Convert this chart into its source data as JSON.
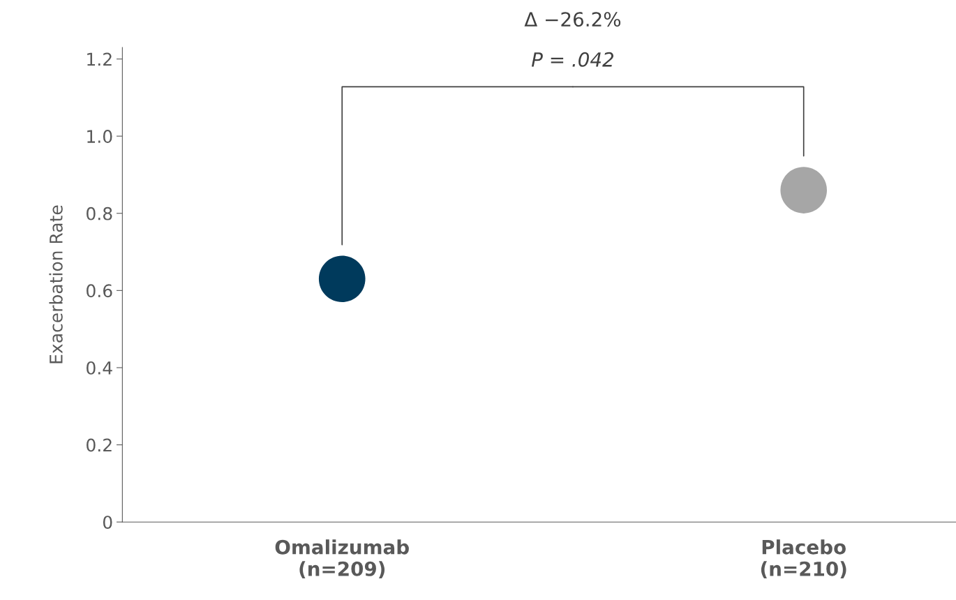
{
  "chart_data": {
    "type": "scatter",
    "ylabel": "Exacerbation Rate",
    "categories": [
      "Omalizumab\n(n=209)",
      "Placebo\n(n=210)"
    ],
    "values": [
      0.63,
      0.86
    ],
    "colors": [
      "#003a5c",
      "#a6a6a6"
    ],
    "ylim": [
      0,
      1.23
    ],
    "yticks": [
      0,
      0.2,
      0.4,
      0.6,
      0.8,
      {
        "value": 1,
        "label": "1.0"
      },
      1.2
    ],
    "annotations": [
      "Δ −26.2%",
      "P = .042"
    ],
    "grid": false,
    "legend": false,
    "marker": "circle"
  }
}
